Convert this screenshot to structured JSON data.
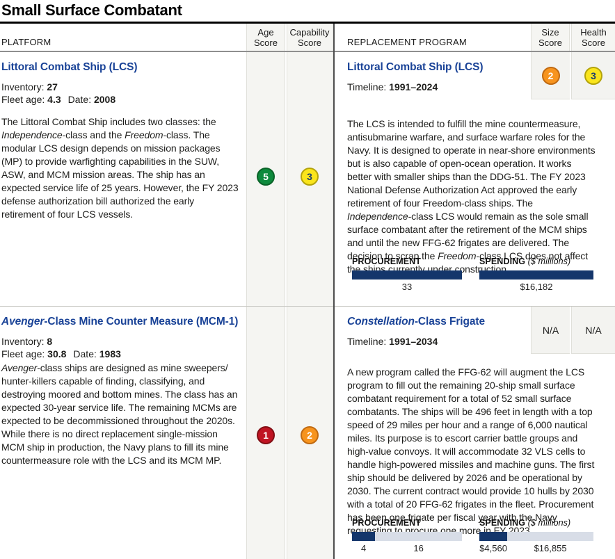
{
  "title": "Small Surface Combatant",
  "colors": {
    "heading_blue": "#1a4397",
    "bar_dark": "#14366b",
    "bar_light": "#d8dde7"
  },
  "score_colors": {
    "green": {
      "fill": "#0e8a3d",
      "border": "#0a6328",
      "text": "#ffffff"
    },
    "yellow": {
      "fill": "#fae51c",
      "border": "#b3a30b",
      "text": "#1d3e6d"
    },
    "orange": {
      "fill": "#f7941e",
      "border": "#c06a12",
      "text": "#ffffff"
    },
    "red": {
      "fill": "#c01423",
      "border": "#820f15",
      "text": "#ffffff"
    }
  },
  "header": {
    "platform": "PLATFORM",
    "age": "Age Score",
    "capability": "Capability Score",
    "replacement": "REPLACEMENT PROGRAM",
    "size": "Size Score",
    "health": "Health Score"
  },
  "labels": {
    "inventory": "Inventory:",
    "fleet_age": "Fleet age:",
    "date": "Date:",
    "timeline": "Timeline:"
  },
  "bar_titles": {
    "procurement": "PROCUREMENT",
    "spending": "SPENDING",
    "spending_unit": "($ millions)"
  },
  "rows": [
    {
      "platform": {
        "name": [
          {
            "t": "Littoral Combat Ship (LCS)"
          }
        ],
        "inventory": "27",
        "fleet_age": "4.3",
        "date": "2008",
        "description": [
          {
            "t": "The Littoral Combat Ship includes two classes: the "
          },
          {
            "t": "Independence",
            "i": true
          },
          {
            "t": "-class and the "
          },
          {
            "t": "Freedom",
            "i": true
          },
          {
            "t": "-class. The modular LCS design depends on mission packages (MP) to provide warfighting capabilities in the SUW, ASW, and MCM mission areas. The ship has an expected service life of 25 years. However, the FY 2023 defense authorization bill authorized the early retirement of four LCS vessels."
          }
        ],
        "age_score": {
          "value": "5",
          "color": "green"
        },
        "capability_score": {
          "value": "3",
          "color": "yellow"
        }
      },
      "replacement": {
        "name": [
          {
            "t": "Littoral Combat Ship (LCS)"
          }
        ],
        "timeline": "1991–2024",
        "size_score": {
          "value": "2",
          "color": "orange"
        },
        "health_score": {
          "value": "3",
          "color": "yellow"
        },
        "description": [
          {
            "t": "The LCS is intended to fulfill the mine countermeasure, antisubmarine warfare, and surface warfare roles for the Navy. It is designed to operate in near-shore environments but is also capable of open-ocean operation. It works better with smaller ships than the DDG-51. The FY 2023 National Defense Authorization Act approved the early retirement of four Freedom-class ships. The "
          },
          {
            "t": "Independence",
            "i": true
          },
          {
            "t": "-class LCS would remain as the sole small surface combatant after the retirement of the MCM ships and until the new FFG-62 frigates are delivered. The decision to scrap the "
          },
          {
            "t": "Freedom",
            "i": true
          },
          {
            "t": "-class LCS does not affect the ships currently under construction."
          }
        ],
        "procurement": {
          "segments": [
            {
              "frac": 1,
              "dark": true,
              "label": "33"
            }
          ]
        },
        "spending": {
          "segments": [
            {
              "frac": 1,
              "dark": true,
              "label": "$16,182"
            }
          ]
        }
      }
    },
    {
      "platform": {
        "name": [
          {
            "t": "Avenger",
            "i": true
          },
          {
            "t": "-Class Mine Counter Measure (MCM-1)"
          }
        ],
        "inventory": "8",
        "fleet_age": "30.8",
        "date": "1983",
        "description": [
          {
            "t": "Avenger",
            "i": true
          },
          {
            "t": "-class ships are designed as mine sweepers/ hunter-killers capable of finding, classifying, and destroying moored and bottom mines. The class has an expected 30-year service life. The remaining MCMs are expected to be decommissioned throughout the 2020s. While there is no direct replacement single-mission MCM ship in production, the Navy plans to fill its mine countermeasure role with the LCS and its MCM MP."
          }
        ],
        "age_score": {
          "value": "1",
          "color": "red"
        },
        "capability_score": {
          "value": "2",
          "color": "orange"
        }
      },
      "replacement": {
        "name": [
          {
            "t": "Constellation",
            "i": true
          },
          {
            "t": "-Class Frigate"
          }
        ],
        "timeline": "1991–2034",
        "size_score": {
          "value": "N/A",
          "color": "na"
        },
        "health_score": {
          "value": "N/A",
          "color": "na"
        },
        "description": [
          {
            "t": "A new program called the FFG-62 will augment the LCS program to fill out the remaining 20-ship small surface combatant requirement for a total of 52 small surface combatants. The ships will be 496 feet in length with a top speed of 29 miles per hour and a range of 6,000 nautical miles. Its purpose is to escort carrier battle groups and high-value convoys. It will accommodate 32 VLS cells to handle high-powered missiles and machine guns. The first ship should be delivered by 2026 and be operational by 2030. The current contract would provide 10 hulls by 2030 with a total of 20 FFG-62 frigates in the fleet. Procurement has been one frigate per fiscal year with the Navy requesting to procure one more in FY 2023."
          }
        ],
        "procurement": {
          "segments": [
            {
              "frac": 0.21,
              "dark": true,
              "label": "4"
            },
            {
              "frac": 0.79,
              "dark": false,
              "label": "16"
            }
          ]
        },
        "spending": {
          "segments": [
            {
              "frac": 0.245,
              "dark": true,
              "label": "$4,560"
            },
            {
              "frac": 0.755,
              "dark": false,
              "label": "$16,855"
            }
          ]
        }
      }
    }
  ]
}
